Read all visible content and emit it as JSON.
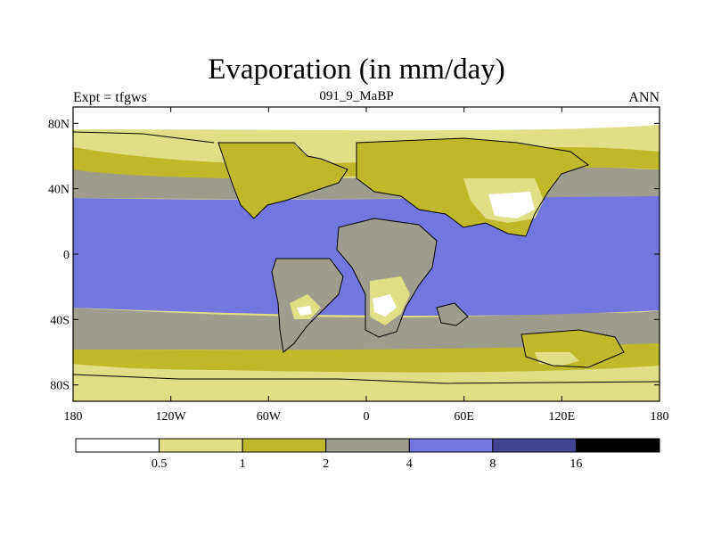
{
  "chart_data": {
    "type": "heatmap",
    "title": "Evaporation (in mm/day)",
    "subtitle": "091_9_MaBP",
    "left_label": "Expt = tfgws",
    "right_label": "ANN",
    "x_axis": {
      "range": [
        -180,
        180
      ],
      "ticks": [
        -180,
        -120,
        -60,
        0,
        60,
        120,
        180
      ],
      "tick_labels": [
        "180",
        "120W",
        "60W",
        "0",
        "60E",
        "120E",
        "180"
      ]
    },
    "y_axis": {
      "range": [
        -90,
        90
      ],
      "ticks": [
        80,
        40,
        0,
        -40,
        -80
      ],
      "tick_labels": [
        "80N",
        "40N",
        "0",
        "40S",
        "80S"
      ]
    },
    "colorbar": {
      "levels": [
        0.5,
        1,
        2,
        4,
        8,
        16
      ],
      "level_labels": [
        "0.5",
        "1",
        "2",
        "4",
        "8",
        "16"
      ],
      "colors": [
        "#ffffff",
        "#e0df85",
        "#bfb82b",
        "#9e9c8c",
        "#7476e0",
        "#434393",
        "#000000"
      ]
    }
  }
}
